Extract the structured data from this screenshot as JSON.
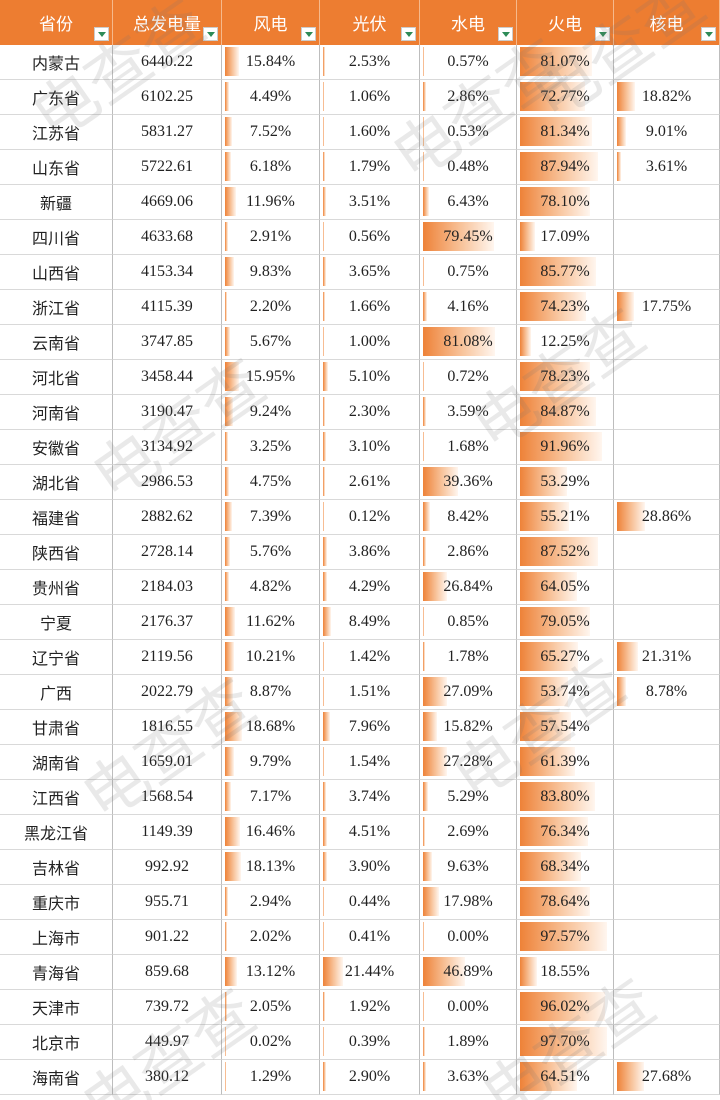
{
  "watermark": "电查查",
  "header": [
    "省份",
    "总发电量",
    "风电",
    "光伏",
    "水电",
    "火电",
    "核电"
  ],
  "rows": [
    [
      "内蒙古",
      "6440.22",
      "15.84%",
      "2.53%",
      "0.57%",
      "81.07%",
      null
    ],
    [
      "广东省",
      "6102.25",
      "4.49%",
      "1.06%",
      "2.86%",
      "72.77%",
      "18.82%"
    ],
    [
      "江苏省",
      "5831.27",
      "7.52%",
      "1.60%",
      "0.53%",
      "81.34%",
      "9.01%"
    ],
    [
      "山东省",
      "5722.61",
      "6.18%",
      "1.79%",
      "0.48%",
      "87.94%",
      "3.61%"
    ],
    [
      "新疆",
      "4669.06",
      "11.96%",
      "3.51%",
      "6.43%",
      "78.10%",
      null
    ],
    [
      "四川省",
      "4633.68",
      "2.91%",
      "0.56%",
      "79.45%",
      "17.09%",
      null
    ],
    [
      "山西省",
      "4153.34",
      "9.83%",
      "3.65%",
      "0.75%",
      "85.77%",
      null
    ],
    [
      "浙江省",
      "4115.39",
      "2.20%",
      "1.66%",
      "4.16%",
      "74.23%",
      "17.75%"
    ],
    [
      "云南省",
      "3747.85",
      "5.67%",
      "1.00%",
      "81.08%",
      "12.25%",
      null
    ],
    [
      "河北省",
      "3458.44",
      "15.95%",
      "5.10%",
      "0.72%",
      "78.23%",
      null
    ],
    [
      "河南省",
      "3190.47",
      "9.24%",
      "2.30%",
      "3.59%",
      "84.87%",
      null
    ],
    [
      "安徽省",
      "3134.92",
      "3.25%",
      "3.10%",
      "1.68%",
      "91.96%",
      null
    ],
    [
      "湖北省",
      "2986.53",
      "4.75%",
      "2.61%",
      "39.36%",
      "53.29%",
      null
    ],
    [
      "福建省",
      "2882.62",
      "7.39%",
      "0.12%",
      "8.42%",
      "55.21%",
      "28.86%"
    ],
    [
      "陕西省",
      "2728.14",
      "5.76%",
      "3.86%",
      "2.86%",
      "87.52%",
      null
    ],
    [
      "贵州省",
      "2184.03",
      "4.82%",
      "4.29%",
      "26.84%",
      "64.05%",
      null
    ],
    [
      "宁夏",
      "2176.37",
      "11.62%",
      "8.49%",
      "0.85%",
      "79.05%",
      null
    ],
    [
      "辽宁省",
      "2119.56",
      "10.21%",
      "1.42%",
      "1.78%",
      "65.27%",
      "21.31%"
    ],
    [
      "广西",
      "2022.79",
      "8.87%",
      "1.51%",
      "27.09%",
      "53.74%",
      "8.78%"
    ],
    [
      "甘肃省",
      "1816.55",
      "18.68%",
      "7.96%",
      "15.82%",
      "57.54%",
      null
    ],
    [
      "湖南省",
      "1659.01",
      "9.79%",
      "1.54%",
      "27.28%",
      "61.39%",
      null
    ],
    [
      "江西省",
      "1568.54",
      "7.17%",
      "3.74%",
      "5.29%",
      "83.80%",
      null
    ],
    [
      "黑龙江省",
      "1149.39",
      "16.46%",
      "4.51%",
      "2.69%",
      "76.34%",
      null
    ],
    [
      "吉林省",
      "992.92",
      "18.13%",
      "3.90%",
      "9.63%",
      "68.34%",
      null
    ],
    [
      "重庆市",
      "955.71",
      "2.94%",
      "0.44%",
      "17.98%",
      "78.64%",
      null
    ],
    [
      "上海市",
      "901.22",
      "2.02%",
      "0.41%",
      "0.00%",
      "97.57%",
      null
    ],
    [
      "青海省",
      "859.68",
      "13.12%",
      "21.44%",
      "46.89%",
      "18.55%",
      null
    ],
    [
      "天津市",
      "739.72",
      "2.05%",
      "1.92%",
      "0.00%",
      "96.02%",
      null
    ],
    [
      "北京市",
      "449.97",
      "0.02%",
      "0.39%",
      "1.89%",
      "97.70%",
      null
    ],
    [
      "海南省",
      "380.12",
      "1.29%",
      "2.90%",
      "3.63%",
      "64.51%",
      "27.68%"
    ]
  ]
}
